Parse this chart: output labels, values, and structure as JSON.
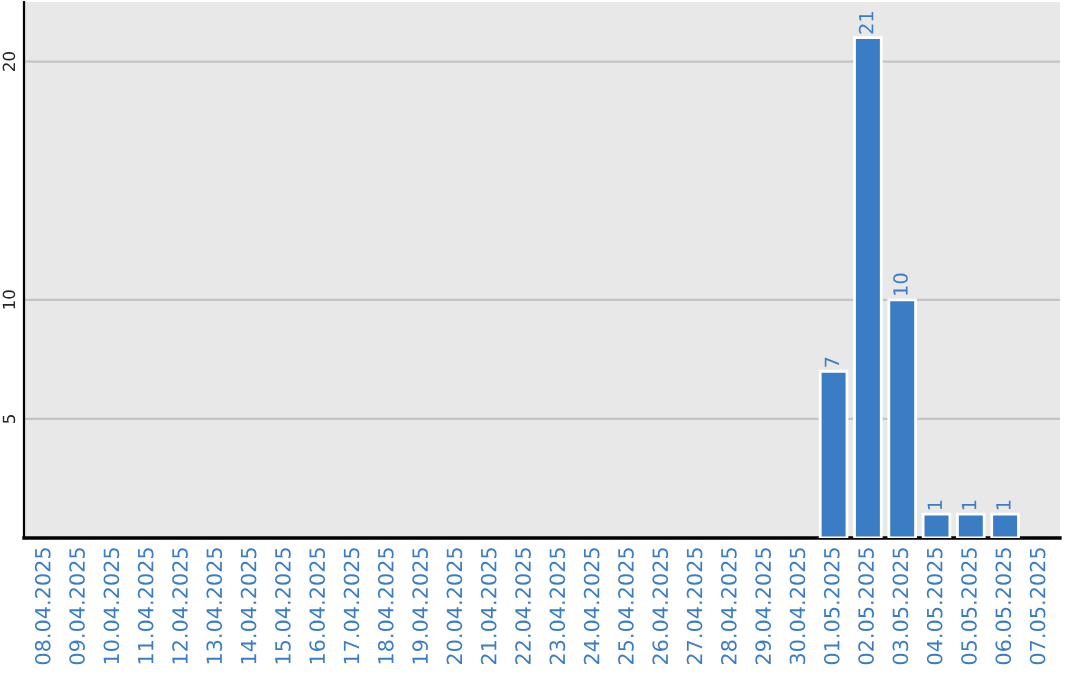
{
  "chart_data": {
    "type": "bar",
    "categories": [
      "08.04.2025",
      "09.04.2025",
      "10.04.2025",
      "11.04.2025",
      "12.04.2025",
      "13.04.2025",
      "14.04.2025",
      "15.04.2025",
      "16.04.2025",
      "17.04.2025",
      "18.04.2025",
      "19.04.2025",
      "20.04.2025",
      "21.04.2025",
      "22.04.2025",
      "23.04.2025",
      "24.04.2025",
      "25.04.2025",
      "26.04.2025",
      "27.04.2025",
      "28.04.2025",
      "29.04.2025",
      "30.04.2025",
      "01.05.2025",
      "02.05.2025",
      "03.05.2025",
      "04.05.2025",
      "05.05.2025",
      "06.05.2025",
      "07.05.2025"
    ],
    "values": [
      null,
      null,
      null,
      null,
      null,
      null,
      null,
      null,
      null,
      null,
      null,
      null,
      null,
      null,
      null,
      null,
      null,
      null,
      null,
      null,
      null,
      null,
      null,
      7,
      21,
      10,
      1,
      1,
      1,
      null
    ],
    "color": "#3b7dc4",
    "ylim": [
      0,
      22.5
    ],
    "yticks": [
      5,
      10,
      20
    ],
    "grid": "y",
    "data_labels": true
  }
}
